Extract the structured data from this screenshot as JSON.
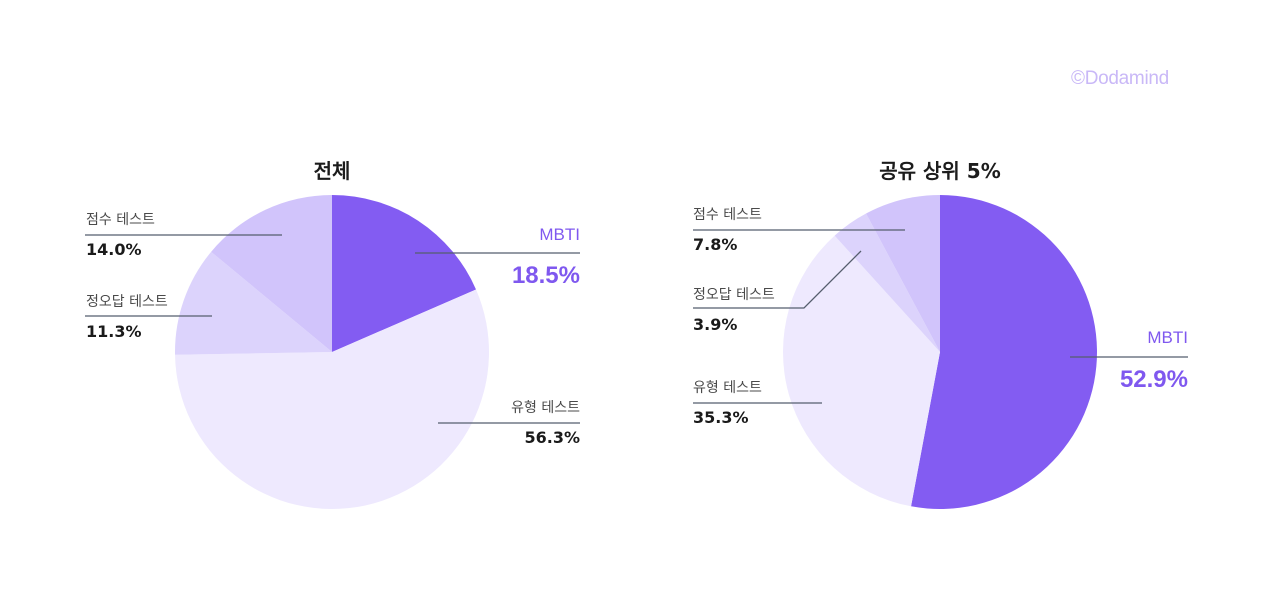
{
  "copyright": "©Dodamind",
  "colors": {
    "mbti": "#835CF2",
    "score_test": "#D1C4FB",
    "quiz_test": "#DCD3FC",
    "type_test": "#EEE9FE",
    "leader_line": "#555E6E",
    "accent_text": "#7F58EF"
  },
  "charts": [
    {
      "title": "전체",
      "labels": {
        "mbti": {
          "name": "MBTI",
          "value": "18.5%"
        },
        "type_test": {
          "name": "유형 테스트",
          "value": "56.3%"
        },
        "quiz_test": {
          "name": "정오답 테스트",
          "value": "11.3%"
        },
        "score_test": {
          "name": "점수 테스트",
          "value": "14.0%"
        }
      }
    },
    {
      "title": "공유 상위  5%",
      "labels": {
        "mbti": {
          "name": "MBTI",
          "value": "52.9%"
        },
        "type_test": {
          "name": "유형 테스트",
          "value": "35.3%"
        },
        "quiz_test": {
          "name": "정오답 테스트",
          "value": "3.9%"
        },
        "score_test": {
          "name": "점수 테스트",
          "value": "7.8%"
        }
      }
    }
  ],
  "chart_data": [
    {
      "type": "pie",
      "title": "전체",
      "categories": [
        "MBTI",
        "유형 테스트",
        "정오답 테스트",
        "점수 테스트"
      ],
      "values": [
        18.5,
        56.3,
        11.3,
        14.0
      ],
      "start_angle": "12 o'clock, clockwise",
      "legend_position": "callout labels"
    },
    {
      "type": "pie",
      "title": "공유 상위 5%",
      "categories": [
        "MBTI",
        "유형 테스트",
        "정오답 테스트",
        "점수 테스트"
      ],
      "values": [
        52.9,
        35.3,
        3.9,
        7.8
      ],
      "start_angle": "12 o'clock, clockwise",
      "legend_position": "callout labels"
    }
  ]
}
